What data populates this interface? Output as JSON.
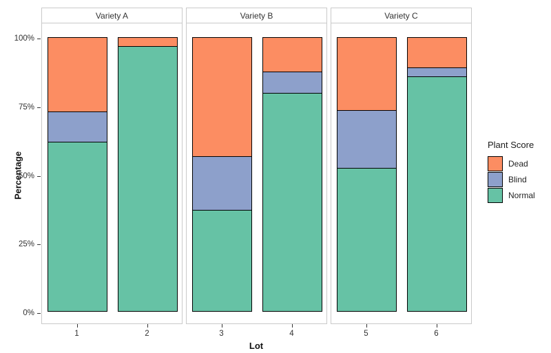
{
  "chart_data": {
    "type": "bar",
    "stacked": true,
    "units": "percent",
    "xlabel": "Lot",
    "ylabel": "Percentage",
    "ylim": [
      0,
      100
    ],
    "grid": false,
    "y_ticks": [
      0,
      25,
      50,
      75,
      100
    ],
    "y_tick_labels": [
      "0%",
      "25%",
      "50%",
      "75%",
      "100%"
    ],
    "legend": {
      "title": "Plant Score",
      "position": "right",
      "entries": [
        {
          "label": "Dead",
          "color": "#FC8D62"
        },
        {
          "label": "Blind",
          "color": "#8DA0CB"
        },
        {
          "label": "Normal",
          "color": "#66C2A5"
        }
      ]
    },
    "facets": [
      {
        "label": "Variety A",
        "lots": [
          "1",
          "2"
        ]
      },
      {
        "label": "Variety B",
        "lots": [
          "3",
          "4"
        ]
      },
      {
        "label": "Variety C",
        "lots": [
          "5",
          "6"
        ]
      }
    ],
    "categories": [
      "1",
      "2",
      "3",
      "4",
      "5",
      "6"
    ],
    "series": [
      {
        "name": "Dead",
        "color": "#FC8D62",
        "values": [
          27,
          3,
          43.5,
          12.5,
          26.5,
          11
        ]
      },
      {
        "name": "Blind",
        "color": "#8DA0CB",
        "values": [
          11,
          0,
          19.5,
          7.5,
          21,
          3
        ]
      },
      {
        "name": "Normal",
        "color": "#66C2A5",
        "values": [
          62,
          97,
          37,
          80,
          52.5,
          86
        ]
      }
    ]
  }
}
